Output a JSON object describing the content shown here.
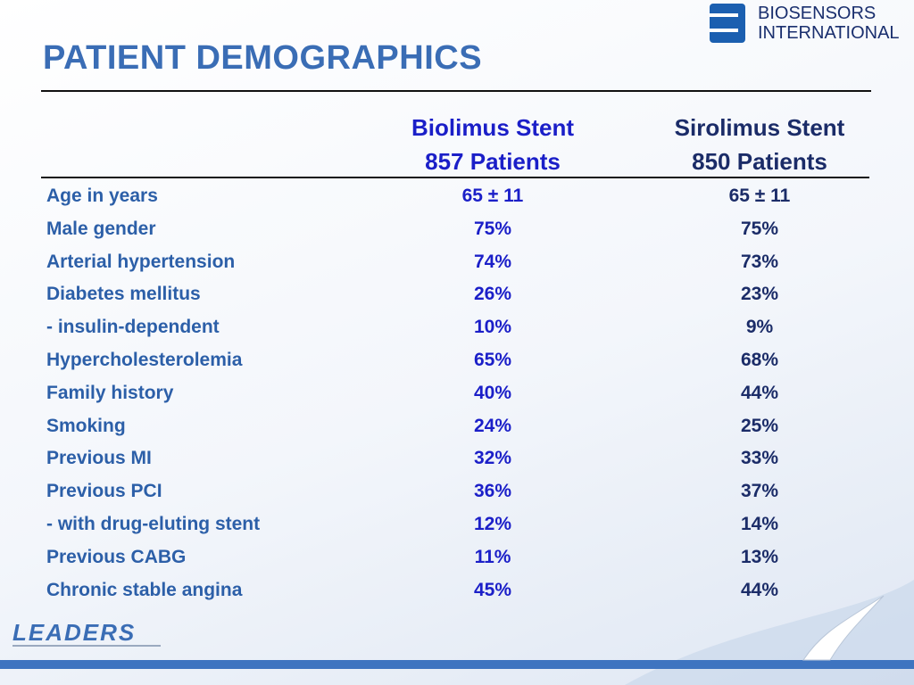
{
  "title": "PATIENT DEMOGRAPHICS",
  "logo": {
    "line1": "BIOSENSORS",
    "line2": "INTERNATIONAL"
  },
  "table": {
    "columns": [
      {
        "name": "Biolimus Stent",
        "patients": "857 Patients"
      },
      {
        "name": "Sirolimus Stent",
        "patients": "850 Patients"
      }
    ],
    "rows": [
      [
        "Age in years",
        "65 ± 11",
        "65 ± 11"
      ],
      [
        "Male gender",
        "75%",
        "75%"
      ],
      [
        "Arterial hypertension",
        "74%",
        "73%"
      ],
      [
        "Diabetes mellitus",
        "26%",
        "23%"
      ],
      [
        "- insulin-dependent",
        "10%",
        "9%"
      ],
      [
        "Hypercholesterolemia",
        "65%",
        "68%"
      ],
      [
        "Family history",
        "40%",
        "44%"
      ],
      [
        "Smoking",
        "24%",
        "25%"
      ],
      [
        "Previous MI",
        "32%",
        "33%"
      ],
      [
        "Previous PCI",
        "36%",
        "37%"
      ],
      [
        "- with drug-eluting stent",
        "12%",
        "14%"
      ],
      [
        "Previous CABG",
        "11%",
        "13%"
      ],
      [
        "Chronic stable angina",
        "45%",
        "44%"
      ]
    ]
  },
  "footer": {
    "brand": "LEADERS"
  }
}
